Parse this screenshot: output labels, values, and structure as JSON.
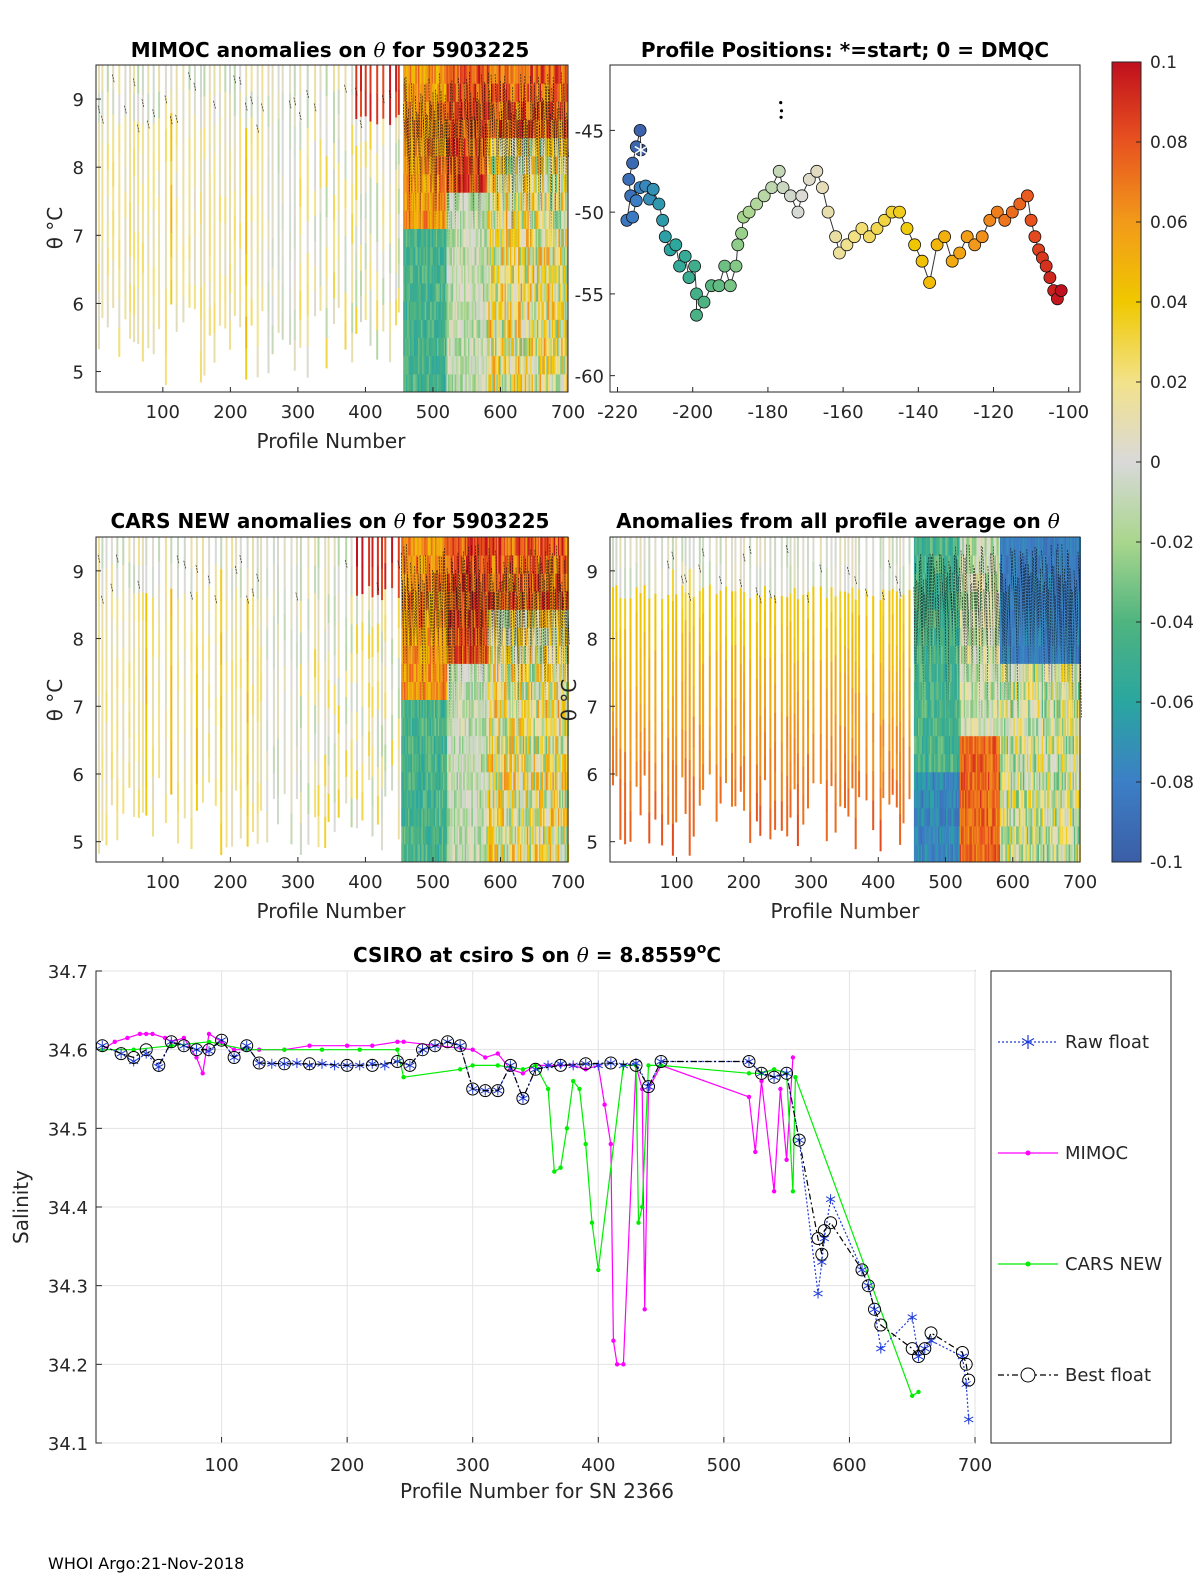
{
  "footer": "WHOI Argo:21-Nov-2018",
  "colorbar": {
    "ticks": [
      "0.1",
      "0.08",
      "0.06",
      "0.04",
      "0.02",
      "0",
      "-0.02",
      "-0.04",
      "-0.06",
      "-0.08",
      "-0.1"
    ],
    "range": [
      -0.1,
      0.1
    ]
  },
  "chart_data": [
    {
      "id": "mimoc",
      "type": "heatmap",
      "title": "MIMOC anomalies on θ  for 5903225",
      "title_main": "MIMOC anomalies on",
      "title_sym": "θ",
      "title_rest": " for 5903225",
      "xlabel": "Profile Number",
      "ylabel": "θ °C",
      "xlim": [
        1,
        700
      ],
      "ylim": [
        4.7,
        9.5
      ],
      "xticks": [
        100,
        200,
        300,
        400,
        500,
        600,
        700
      ],
      "yticks": [
        5,
        6,
        7,
        8,
        9
      ]
    },
    {
      "id": "positions",
      "type": "scatter",
      "title": "Profile Positions: *=start; 0 = DMQC",
      "xlim": [
        -222,
        -97
      ],
      "ylim": [
        -61,
        -41
      ],
      "xticks": [
        -220,
        -200,
        -180,
        -160,
        -140,
        -120,
        -100
      ],
      "yticks": [
        -45,
        -50,
        -55,
        -60
      ],
      "track": [
        [
          -213.8,
          -46.2
        ],
        [
          -214,
          -45
        ],
        [
          -215,
          -46
        ],
        [
          -216,
          -47
        ],
        [
          -217,
          -48
        ],
        [
          -216.5,
          -49
        ],
        [
          -217.5,
          -50.5
        ],
        [
          -216,
          -50.3
        ],
        [
          -215,
          -49.3
        ],
        [
          -214,
          -48.5
        ],
        [
          -212.5,
          -48.4
        ],
        [
          -211.5,
          -49.2
        ],
        [
          -210.5,
          -48.6
        ],
        [
          -209,
          -49.5
        ],
        [
          -208,
          -50.5
        ],
        [
          -207.3,
          -51.5
        ],
        [
          -206,
          -52.3
        ],
        [
          -204.5,
          -52
        ],
        [
          -203.5,
          -53.3
        ],
        [
          -202,
          -52.7
        ],
        [
          -201,
          -54
        ],
        [
          -199.5,
          -53.3
        ],
        [
          -199,
          -55
        ],
        [
          -199,
          -56.3
        ],
        [
          -197,
          -55.5
        ],
        [
          -195,
          -54.5
        ],
        [
          -193,
          -54.5
        ],
        [
          -191.5,
          -53.3
        ],
        [
          -190,
          -54.5
        ],
        [
          -188.5,
          -53.3
        ],
        [
          -188,
          -52
        ],
        [
          -187,
          -51.3
        ],
        [
          -186.5,
          -50.3
        ],
        [
          -185,
          -50
        ],
        [
          -183,
          -49.5
        ],
        [
          -181,
          -49
        ],
        [
          -179,
          -48.5
        ],
        [
          -177,
          -47.5
        ],
        [
          -176,
          -48.5
        ],
        [
          -174,
          -49
        ],
        [
          -172,
          -50
        ],
        [
          -171,
          -49
        ],
        [
          -169,
          -48
        ],
        [
          -167,
          -47.5
        ],
        [
          -165.5,
          -48.5
        ],
        [
          -164,
          -50
        ],
        [
          -162,
          -51.5
        ],
        [
          -161,
          -52.5
        ],
        [
          -159,
          -52
        ],
        [
          -157,
          -51.5
        ],
        [
          -155,
          -51
        ],
        [
          -153,
          -51.5
        ],
        [
          -151,
          -51
        ],
        [
          -149,
          -50.5
        ],
        [
          -147,
          -50
        ],
        [
          -145,
          -50
        ],
        [
          -143,
          -51
        ],
        [
          -141,
          -52
        ],
        [
          -139,
          -53
        ],
        [
          -137,
          -54.3
        ],
        [
          -135,
          -52
        ],
        [
          -133,
          -51.5
        ],
        [
          -131,
          -53
        ],
        [
          -129,
          -52.5
        ],
        [
          -127,
          -51.5
        ],
        [
          -125,
          -52
        ],
        [
          -123,
          -51.5
        ],
        [
          -121,
          -50.5
        ],
        [
          -119,
          -50
        ],
        [
          -117,
          -50.5
        ],
        [
          -115,
          -50
        ],
        [
          -113,
          -49.5
        ],
        [
          -111,
          -49
        ],
        [
          -110,
          -50.5
        ],
        [
          -109,
          -51.5
        ],
        [
          -108,
          -52.3
        ],
        [
          -107,
          -52.8
        ],
        [
          -106,
          -53.3
        ],
        [
          -105,
          -54
        ],
        [
          -104,
          -54.8
        ],
        [
          -103,
          -55.3
        ],
        [
          -102,
          -54.8
        ]
      ],
      "cluster": [
        [
          -176.6,
          -43.3
        ],
        [
          -176.4,
          -43.8
        ],
        [
          -176.5,
          -44.2
        ]
      ],
      "start_marker": [
        -213.8,
        -46.2
      ]
    },
    {
      "id": "cars",
      "type": "heatmap",
      "title": "CARS NEW anomalies on θ for 5903225",
      "title_main": "CARS NEW anomalies on",
      "title_sym": "θ",
      "title_rest": " for 5903225",
      "xlabel": "Profile Number",
      "ylabel": "θ °C",
      "xlim": [
        1,
        700
      ],
      "ylim": [
        4.7,
        9.5
      ],
      "xticks": [
        100,
        200,
        300,
        400,
        500,
        600,
        700
      ],
      "yticks": [
        5,
        6,
        7,
        8,
        9
      ]
    },
    {
      "id": "allavg",
      "type": "heatmap",
      "title": "Anomalies from all profile average on θ",
      "title_main": "Anomalies from all profile average on",
      "title_sym": "θ",
      "title_rest": "",
      "xlabel": "Profile Number",
      "ylabel": "θ °C",
      "xlim": [
        1,
        700
      ],
      "ylim": [
        4.7,
        9.5
      ],
      "xticks": [
        100,
        200,
        300,
        400,
        500,
        600,
        700
      ],
      "yticks": [
        5,
        6,
        7,
        8,
        9
      ]
    },
    {
      "id": "salinity",
      "type": "line",
      "title": "CSIRO at csiro S on θ = 8.8559°C",
      "title_main": "CSIRO at csiro S on",
      "title_sym": "θ",
      "title_value": " = 8.8559",
      "title_deg": "o",
      "title_unit": "C",
      "xlabel": "Profile Number for SN 2366",
      "ylabel": "Salinity",
      "xlim": [
        0,
        700
      ],
      "ylim": [
        34.1,
        34.7
      ],
      "xticks": [
        100,
        200,
        300,
        400,
        500,
        600,
        700
      ],
      "yticks": [
        34.1,
        34.2,
        34.3,
        34.4,
        34.5,
        34.6,
        34.7
      ],
      "legend": [
        "Raw float",
        "MIMOC",
        "CARS NEW",
        "Best float"
      ],
      "series": [
        {
          "name": "Raw float",
          "x": [
            5,
            20,
            30,
            40,
            50,
            60,
            70,
            80,
            90,
            100,
            110,
            120,
            130,
            140,
            150,
            160,
            170,
            180,
            190,
            200,
            210,
            220,
            230,
            240,
            250,
            260,
            270,
            280,
            290,
            300,
            310,
            320,
            330,
            340,
            350,
            360,
            370,
            380,
            390,
            400,
            410,
            420,
            430,
            440,
            450,
            520,
            530,
            540,
            550,
            560,
            575,
            578,
            580,
            585,
            610,
            615,
            620,
            625,
            650,
            655,
            660,
            665,
            690,
            693,
            695
          ],
          "y": [
            34.605,
            34.595,
            34.585,
            34.595,
            34.578,
            34.61,
            34.605,
            34.6,
            34.598,
            34.612,
            34.59,
            34.605,
            34.583,
            34.582,
            34.582,
            34.583,
            34.58,
            34.582,
            34.58,
            34.58,
            34.58,
            34.582,
            34.58,
            34.585,
            34.58,
            34.6,
            34.605,
            34.61,
            34.605,
            34.55,
            34.548,
            34.548,
            34.58,
            34.538,
            34.575,
            34.58,
            34.582,
            34.58,
            34.582,
            34.58,
            34.583,
            34.58,
            34.583,
            34.553,
            34.585,
            34.585,
            34.57,
            34.565,
            34.57,
            34.485,
            34.29,
            34.33,
            34.36,
            34.41,
            34.32,
            34.3,
            34.27,
            34.22,
            34.26,
            34.21,
            34.22,
            34.23,
            34.21,
            34.175,
            34.13
          ]
        },
        {
          "name": "MIMOC",
          "x": [
            5,
            15,
            25,
            35,
            40,
            45,
            55,
            60,
            70,
            80,
            85,
            90,
            100,
            110,
            120,
            130,
            150,
            170,
            200,
            220,
            240,
            245,
            300,
            310,
            320,
            330,
            340,
            350,
            360,
            370,
            380,
            390,
            400,
            405,
            410,
            412,
            415,
            420,
            430,
            435,
            437,
            440,
            450,
            520,
            525,
            530,
            540,
            545,
            550,
            555
          ],
          "y": [
            34.6,
            34.61,
            34.615,
            34.62,
            34.62,
            34.62,
            34.615,
            34.61,
            34.615,
            34.59,
            34.57,
            34.62,
            34.61,
            34.6,
            34.6,
            34.6,
            34.6,
            34.605,
            34.605,
            34.605,
            34.61,
            34.61,
            34.6,
            34.59,
            34.595,
            34.575,
            34.57,
            34.58,
            34.58,
            34.58,
            34.58,
            34.575,
            34.58,
            34.53,
            34.48,
            34.23,
            34.2,
            34.2,
            34.58,
            34.55,
            34.27,
            34.55,
            34.58,
            34.54,
            34.47,
            34.56,
            34.42,
            34.55,
            34.46,
            34.59
          ]
        },
        {
          "name": "CARS NEW",
          "x": [
            5,
            30,
            60,
            90,
            120,
            150,
            180,
            210,
            240,
            245,
            290,
            300,
            320,
            340,
            350,
            360,
            365,
            370,
            375,
            380,
            385,
            390,
            395,
            400,
            420,
            430,
            432,
            435,
            440,
            450,
            520,
            530,
            540,
            550,
            555,
            557,
            650,
            655
          ],
          "y": [
            34.6,
            34.6,
            34.605,
            34.61,
            34.6,
            34.6,
            34.6,
            34.6,
            34.6,
            34.565,
            34.575,
            34.58,
            34.58,
            34.575,
            34.58,
            34.55,
            34.445,
            34.45,
            34.5,
            34.56,
            34.55,
            34.48,
            34.38,
            34.32,
            34.58,
            34.58,
            34.38,
            34.4,
            34.58,
            34.58,
            34.57,
            34.57,
            34.575,
            34.57,
            34.42,
            34.565,
            34.16,
            34.165
          ]
        },
        {
          "name": "Best float",
          "x": [
            5,
            20,
            30,
            40,
            50,
            60,
            70,
            80,
            90,
            100,
            110,
            120,
            130,
            150,
            170,
            200,
            220,
            240,
            250,
            260,
            270,
            280,
            290,
            300,
            310,
            320,
            330,
            340,
            350,
            370,
            390,
            410,
            430,
            440,
            450,
            520,
            530,
            540,
            550,
            560,
            575,
            578,
            580,
            585,
            610,
            615,
            620,
            625,
            650,
            655,
            660,
            665,
            690,
            693,
            695
          ],
          "y": [
            34.605,
            34.595,
            34.59,
            34.6,
            34.58,
            34.61,
            34.605,
            34.6,
            34.6,
            34.612,
            34.59,
            34.605,
            34.583,
            34.582,
            34.582,
            34.58,
            34.58,
            34.585,
            34.58,
            34.6,
            34.605,
            34.61,
            34.605,
            34.55,
            34.548,
            34.548,
            34.58,
            34.538,
            34.575,
            34.58,
            34.582,
            34.583,
            34.58,
            34.553,
            34.585,
            34.585,
            34.57,
            34.565,
            34.57,
            34.485,
            34.36,
            34.34,
            34.37,
            34.38,
            34.32,
            34.3,
            34.27,
            34.25,
            34.22,
            34.21,
            34.22,
            34.24,
            34.215,
            34.2,
            34.18
          ]
        }
      ]
    }
  ]
}
